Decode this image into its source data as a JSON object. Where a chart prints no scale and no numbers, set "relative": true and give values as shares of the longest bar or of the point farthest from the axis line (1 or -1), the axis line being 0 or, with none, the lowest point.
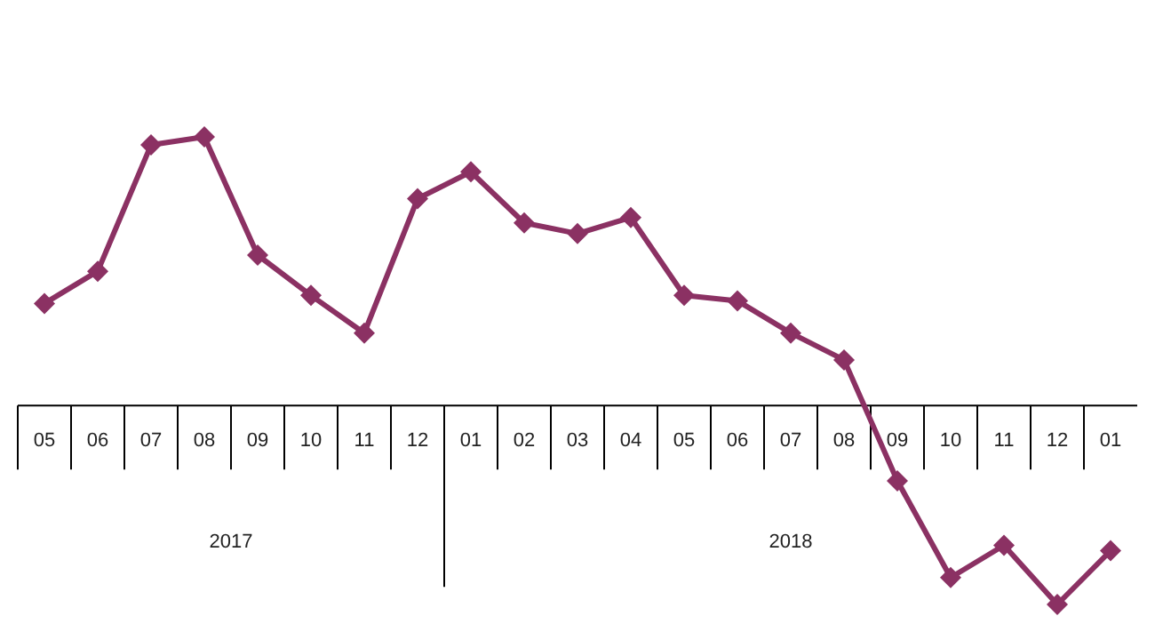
{
  "chart_data": {
    "type": "line",
    "relative": true,
    "marker": "diamond",
    "line_style": "solid",
    "color": "#8b3163",
    "categories": [
      "05",
      "06",
      "07",
      "08",
      "09",
      "10",
      "11",
      "12",
      "01",
      "02",
      "03",
      "04",
      "05",
      "06",
      "07",
      "08",
      "09",
      "10",
      "11",
      "12",
      "01"
    ],
    "values": [
      0.38,
      0.5,
      0.97,
      1,
      0.56,
      0.41,
      0.27,
      0.77,
      0.87,
      0.68,
      0.64,
      0.7,
      0.41,
      0.39,
      0.27,
      0.17,
      -0.28,
      -0.64,
      -0.52,
      -0.74,
      -0.54
    ],
    "annotations": [
      "2017",
      "2018"
    ]
  }
}
